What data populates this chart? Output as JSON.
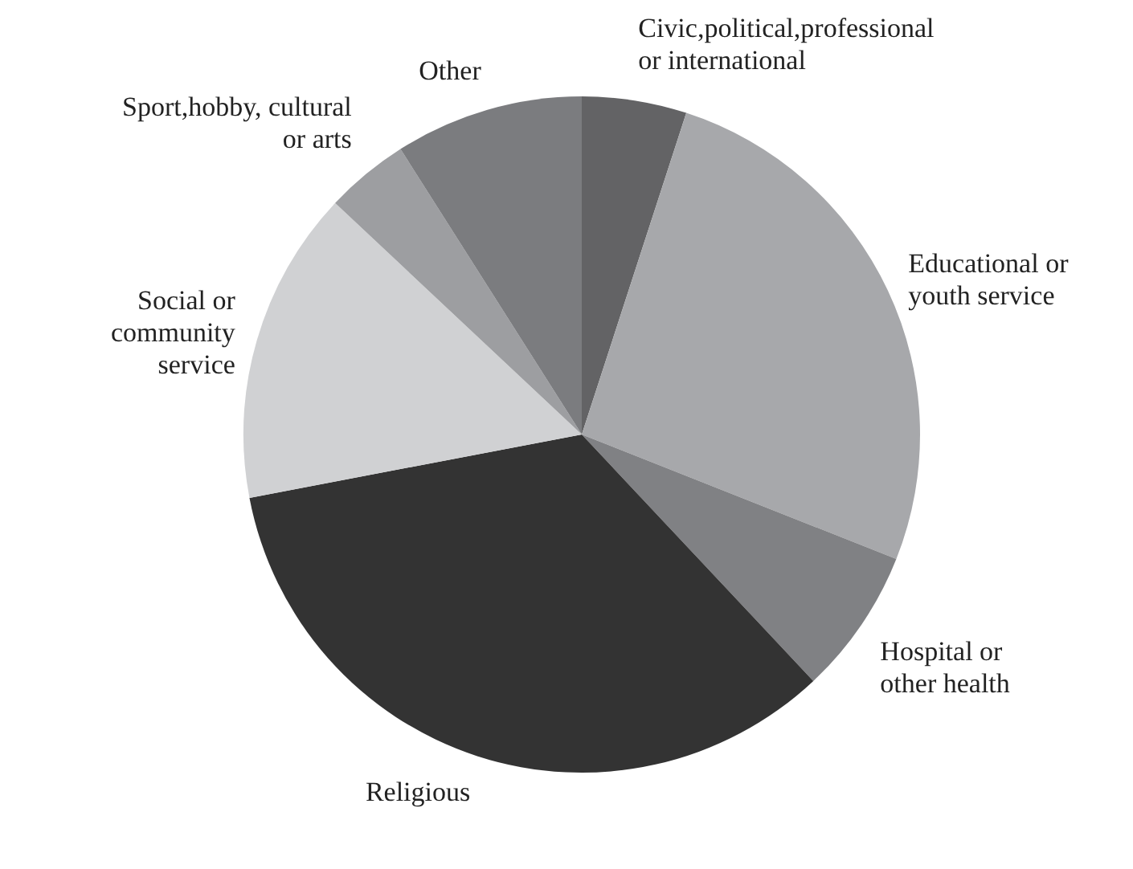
{
  "chart_data": {
    "type": "pie",
    "categories": [
      "Civic,political,professional or international",
      "Educational or youth service",
      "Hospital or other health",
      "Religious",
      "Social or community service",
      "Sport,hobby, cultural or arts",
      "Other"
    ],
    "values": [
      5,
      26,
      7,
      34,
      15,
      4,
      9
    ],
    "colors": [
      "#636365",
      "#a7a8ab",
      "#808184",
      "#333333",
      "#d0d1d3",
      "#9d9ea1",
      "#7b7c7f"
    ],
    "legend": false
  }
}
